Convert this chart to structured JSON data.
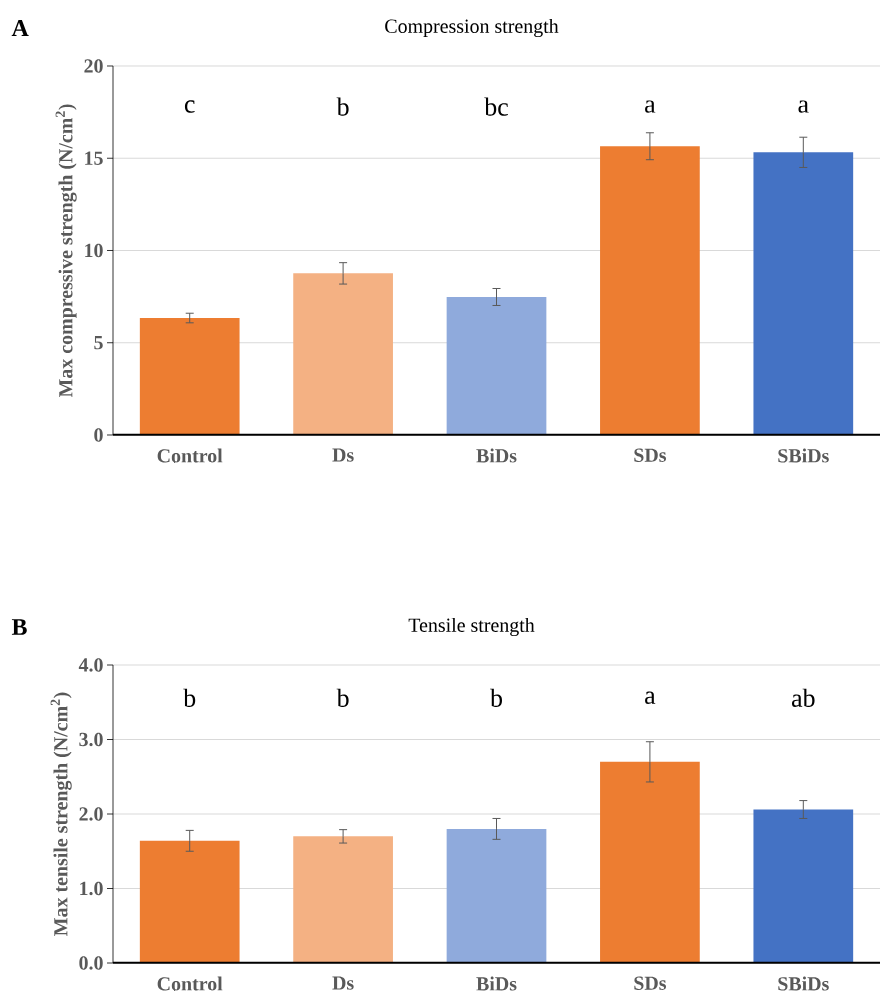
{
  "chart_data": [
    {
      "type": "bar",
      "title": "Compression strength",
      "ylabel": "Max compressive strength (N/cm$^{2}$)",
      "categories": [
        "Control",
        "Ds",
        "BiDs",
        "SDs",
        "SBiDs"
      ],
      "values": [
        6.34,
        8.76,
        7.48,
        15.65,
        15.32
      ],
      "errors": [
        0.26,
        0.58,
        0.46,
        0.73,
        0.82
      ],
      "colors": [
        "#ed7d31",
        "#f4b183",
        "#8faadc",
        "#ed7d31",
        "#4472c4"
      ],
      "ylim": [
        0,
        20
      ],
      "yticks": [
        0,
        5,
        10,
        15,
        20
      ],
      "grid": "y",
      "annotations": [
        "A",
        "c",
        "b",
        "bc",
        "a",
        "a"
      ]
    },
    {
      "type": "bar",
      "title": "Tensile strength",
      "ylabel": "Max tensile strength (N/cm$^{2}$)",
      "categories": [
        "Control",
        "Ds",
        "BiDs",
        "SDs",
        "SBiDs"
      ],
      "values": [
        1.64,
        1.7,
        1.8,
        2.7,
        2.06
      ],
      "errors": [
        0.14,
        0.09,
        0.14,
        0.27,
        0.12
      ],
      "colors": [
        "#ed7d31",
        "#f4b183",
        "#8faadc",
        "#ed7d31",
        "#4472c4"
      ],
      "ylim": [
        0,
        4
      ],
      "yticks": [
        {
          "value": 0,
          "label": "0.0"
        },
        {
          "value": 1,
          "label": "1.0"
        },
        {
          "value": 2,
          "label": "2.0"
        },
        {
          "value": 3,
          "label": "3.0"
        },
        {
          "value": 4,
          "label": "4.0"
        }
      ],
      "grid": "y",
      "annotations": [
        "B",
        "b",
        "b",
        "b",
        "a",
        "ab"
      ]
    }
  ]
}
